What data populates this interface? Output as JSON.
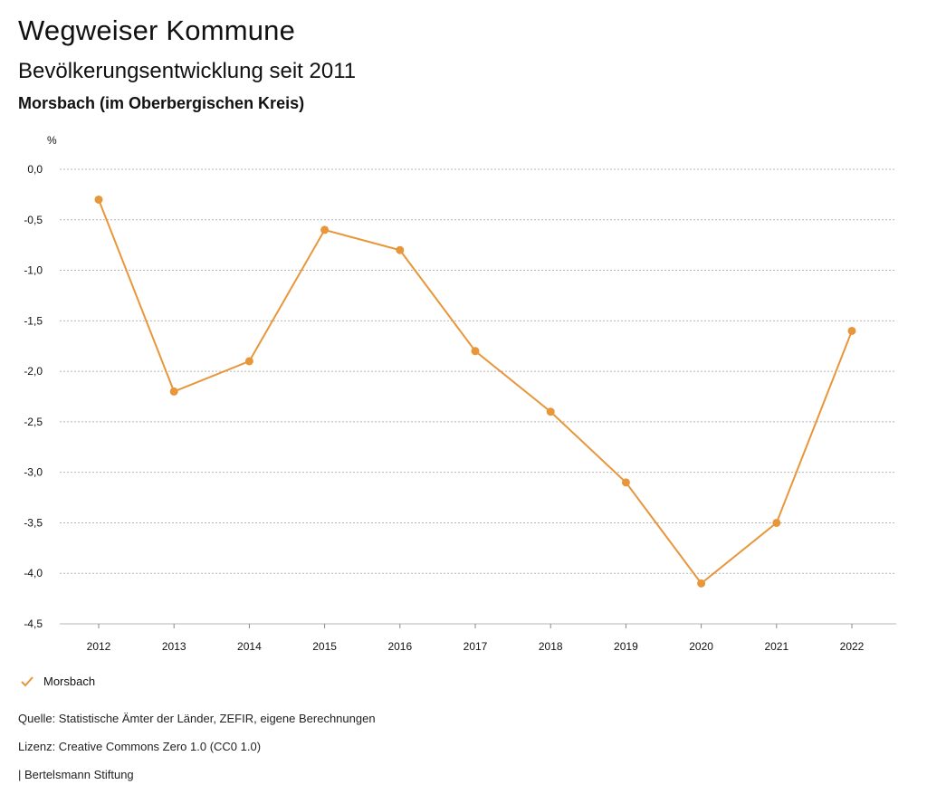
{
  "header": {
    "title": "Wegweiser Kommune",
    "subtitle": "Bevölkerungsentwicklung seit 2011",
    "region": "Morsbach (im Oberbergischen Kreis)"
  },
  "chart_data": {
    "type": "line",
    "title": "Bevölkerungsentwicklung seit 2011",
    "ylabel": "%",
    "xlabel": "",
    "categories": [
      "2012",
      "2013",
      "2014",
      "2015",
      "2016",
      "2017",
      "2018",
      "2019",
      "2020",
      "2021",
      "2022"
    ],
    "series": [
      {
        "name": "Morsbach",
        "values": [
          -0.3,
          -2.2,
          -1.9,
          -0.6,
          -0.8,
          -1.8,
          -2.4,
          -3.1,
          -4.1,
          -3.5,
          -1.6
        ],
        "color": "#e8963a"
      }
    ],
    "ylim": [
      -4.5,
      0.0
    ],
    "yticks": [
      0.0,
      -0.5,
      -1.0,
      -1.5,
      -2.0,
      -2.5,
      -3.0,
      -3.5,
      -4.0,
      -4.5
    ],
    "ytick_labels": [
      "0,0",
      "-0,5",
      "-1,0",
      "-1,5",
      "-2,0",
      "-2,5",
      "-3,0",
      "-3,5",
      "-4,0",
      "-4,5"
    ],
    "grid": true,
    "legend": "bottom-left"
  },
  "legend": {
    "label": "Morsbach"
  },
  "footer": {
    "source": "Quelle: Statistische Ämter der Länder, ZEFIR, eigene Berechnungen",
    "license": "Lizenz: Creative Commons Zero 1.0 (CC0 1.0)",
    "publisher": "| Bertelsmann Stiftung"
  }
}
